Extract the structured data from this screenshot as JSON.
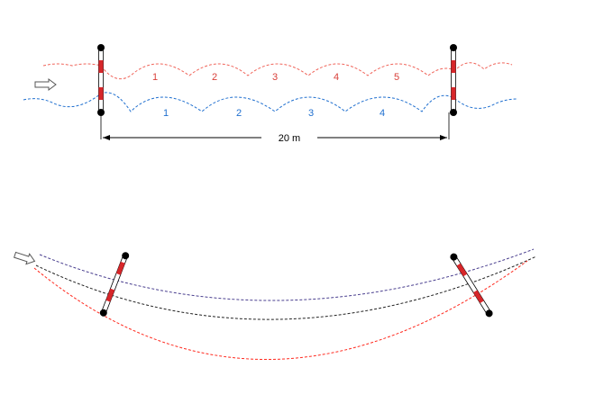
{
  "top_diagram": {
    "red_stride_labels": [
      "1",
      "2",
      "3",
      "4",
      "5"
    ],
    "blue_stride_labels": [
      "1",
      "2",
      "3",
      "4"
    ],
    "distance_label": "20 m"
  },
  "colors": {
    "red_track": "#f0645a",
    "red_stride_text": "#d9403a",
    "blue_track": "#1f6fcf",
    "blue_stride_text": "#1f6fcf",
    "pole_red": "#d7262a",
    "pole_white": "#ffffff",
    "pole_end": "#000000",
    "bottom_top_curve": "#4a3f8f",
    "bottom_mid_curve": "#222222",
    "bottom_low_curve": "#ff2a1f",
    "arrow": "#555555"
  },
  "icons": {
    "direction": "right-arrow-icon"
  }
}
